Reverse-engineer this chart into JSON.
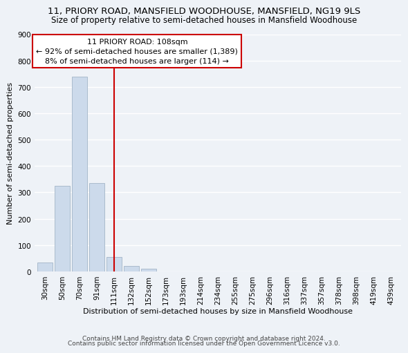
{
  "title1": "11, PRIORY ROAD, MANSFIELD WOODHOUSE, MANSFIELD, NG19 9LS",
  "title2": "Size of property relative to semi-detached houses in Mansfield Woodhouse",
  "xlabel": "Distribution of semi-detached houses by size in Mansfield Woodhouse",
  "ylabel": "Number of semi-detached properties",
  "bar_labels": [
    "30sqm",
    "50sqm",
    "70sqm",
    "91sqm",
    "111sqm",
    "132sqm",
    "152sqm",
    "173sqm",
    "193sqm",
    "214sqm",
    "234sqm",
    "255sqm",
    "275sqm",
    "296sqm",
    "316sqm",
    "337sqm",
    "357sqm",
    "378sqm",
    "398sqm",
    "419sqm",
    "439sqm"
  ],
  "bar_values": [
    35,
    325,
    740,
    335,
    55,
    22,
    11,
    0,
    0,
    0,
    0,
    0,
    0,
    0,
    0,
    0,
    0,
    0,
    0,
    0,
    0
  ],
  "bar_color": "#ccdaeb",
  "bar_edge_color": "#aabbcc",
  "highlight_line_index": 4,
  "highlight_line_color": "#cc0000",
  "ylim": [
    0,
    900
  ],
  "yticks": [
    0,
    100,
    200,
    300,
    400,
    500,
    600,
    700,
    800,
    900
  ],
  "ann_line1": "11 PRIORY ROAD: 108sqm",
  "ann_line2": "← 92% of semi-detached houses are smaller (1,389)",
  "ann_line3": "8% of semi-detached houses are larger (114) →",
  "footer1": "Contains HM Land Registry data © Crown copyright and database right 2024.",
  "footer2": "Contains public sector information licensed under the Open Government Licence v3.0.",
  "background_color": "#eef2f7",
  "grid_color": "#ffffff",
  "title1_fontsize": 9.5,
  "title2_fontsize": 8.5,
  "ylabel_fontsize": 8,
  "xlabel_fontsize": 8,
  "tick_fontsize": 7.5,
  "ann_fontsize": 8,
  "footer_fontsize": 6.5
}
